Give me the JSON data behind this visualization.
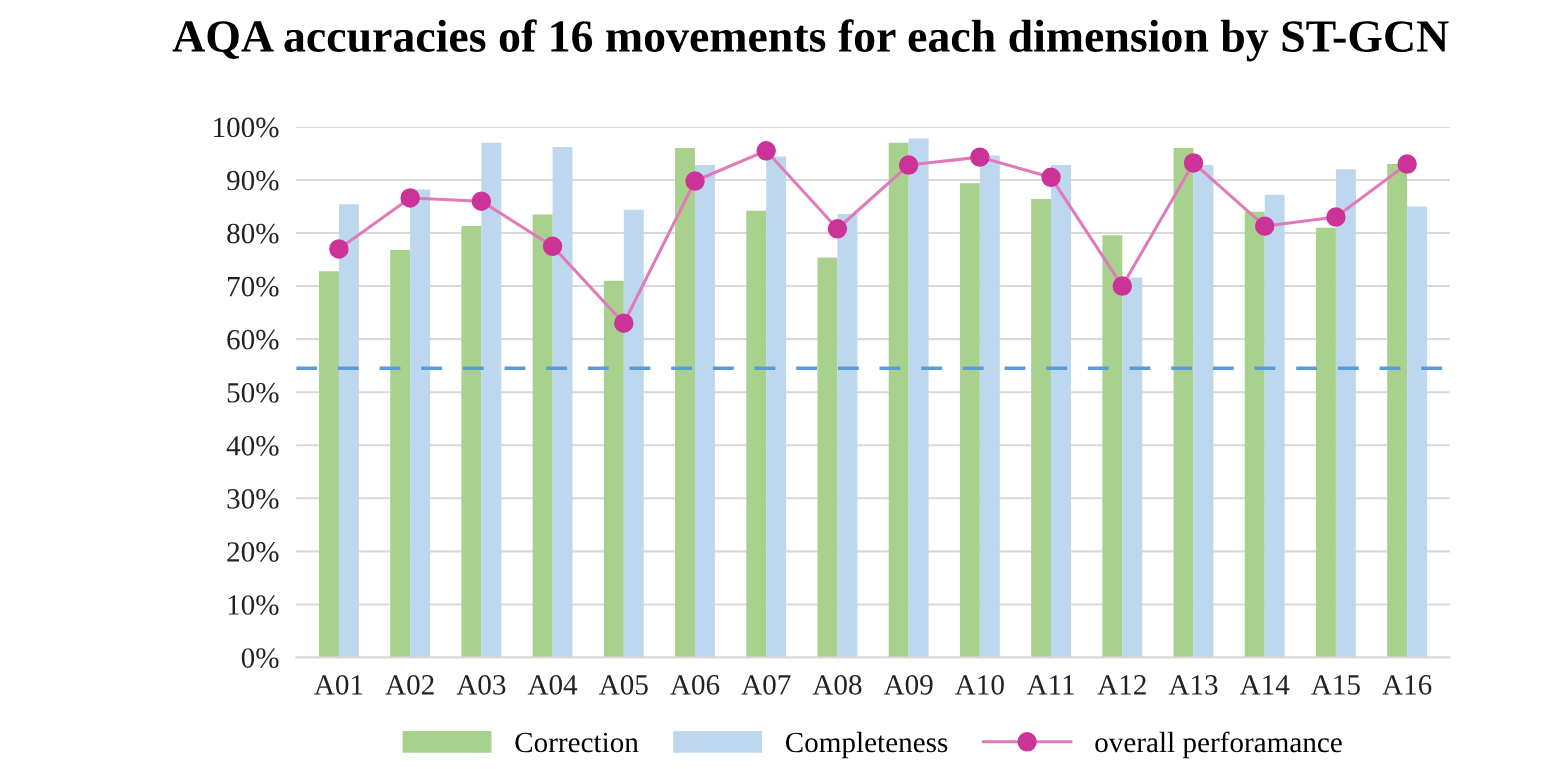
{
  "chart_data": {
    "type": "bar",
    "title": "AQA accuracies of 16 movements for each dimension by ST-GCN",
    "categories": [
      "A01",
      "A02",
      "A03",
      "A04",
      "A05",
      "A06",
      "A07",
      "A08",
      "A09",
      "A10",
      "A11",
      "A12",
      "A13",
      "A14",
      "A15",
      "A16"
    ],
    "series": [
      {
        "name": "Correction",
        "color": "#a9d18e",
        "values": [
          72.8,
          76.8,
          81.3,
          83.5,
          71,
          96,
          84.2,
          75.4,
          97,
          89.4,
          86.4,
          79.6,
          96,
          84,
          81,
          93
        ]
      },
      {
        "name": "Completeness",
        "color": "#bdd7ee",
        "values": [
          85.4,
          88.2,
          97,
          96.2,
          84.4,
          92.8,
          94.4,
          83.6,
          97.8,
          94.6,
          92.8,
          71.6,
          92.8,
          87.2,
          92,
          85
        ]
      },
      {
        "name": "overall perforamance",
        "type": "line",
        "color": "#cc3399",
        "values": [
          77,
          86.6,
          86,
          77.5,
          63,
          89.8,
          95.5,
          80.8,
          92.8,
          94.3,
          90.5,
          70,
          93.2,
          81.3,
          83,
          93
        ]
      }
    ],
    "ylim": [
      0,
      100
    ],
    "yticks": [
      {
        "value": 0,
        "label": "0%"
      },
      {
        "value": 10,
        "label": "10%"
      },
      {
        "value": 20,
        "label": "20%"
      },
      {
        "value": 30,
        "label": "30%"
      },
      {
        "value": 40,
        "label": "40%"
      },
      {
        "value": 50,
        "label": "50%"
      },
      {
        "value": 60,
        "label": "60%"
      },
      {
        "value": 70,
        "label": "70%"
      },
      {
        "value": 80,
        "label": "80%"
      },
      {
        "value": 90,
        "label": "90%"
      },
      {
        "value": 100,
        "label": "100%"
      }
    ],
    "ref_lines": [
      {
        "axis": "y",
        "value": 54.5,
        "color": "#5b9bd5",
        "line_style": "dashed"
      }
    ],
    "grid": "y",
    "legend": "bottom",
    "marker": "circle",
    "line_style": "solid"
  }
}
